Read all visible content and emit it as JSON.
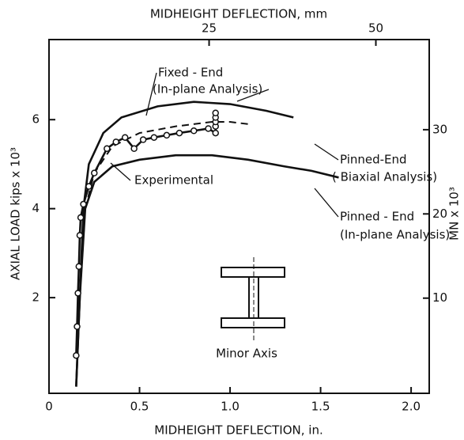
{
  "chart_data": {
    "type": "line",
    "xlabel": "MIDHEIGHT DEFLECTION, in.",
    "x2label": "MIDHEIGHT DEFLECTION, mm",
    "ylabel": "AXIAL  LOAD  kips x 10³",
    "y2label": "MN x 10³",
    "xlim": [
      0,
      2.1
    ],
    "xticks": [
      0,
      0.5,
      {
        "value": 1.0,
        "label": "1.0"
      },
      1.5,
      {
        "value": 2.0,
        "label": "2.0"
      }
    ],
    "x2lim": [
      1,
      58
    ],
    "x2ticks": [
      25,
      50
    ],
    "ylim": [
      -0.15,
      7.8
    ],
    "yticks": [
      2,
      4,
      6
    ],
    "y2lim": [
      -1.3,
      40.7
    ],
    "y2ticks": [
      10,
      20,
      30
    ],
    "series": [
      {
        "name": "Fixed - End",
        "note": "(In-plane Analysis)",
        "color": "#111111",
        "dash": false,
        "markers": false,
        "x": [
          0.15,
          0.17,
          0.19,
          0.22,
          0.3,
          0.4,
          0.6,
          0.8,
          1.0,
          1.2,
          1.35
        ],
        "values": [
          0,
          2,
          4,
          5,
          5.7,
          6.05,
          6.3,
          6.4,
          6.35,
          6.2,
          6.05
        ]
      },
      {
        "name": "Pinned-End",
        "note": "( Biaxial Analysis)",
        "color": "#111111",
        "dash": true,
        "markers": false,
        "x": [
          0.15,
          0.17,
          0.2,
          0.25,
          0.35,
          0.5,
          0.7,
          0.9,
          1.0,
          1.1
        ],
        "values": [
          0,
          2,
          4,
          4.8,
          5.4,
          5.7,
          5.85,
          5.95,
          5.95,
          5.9
        ]
      },
      {
        "name": "Pinned - End",
        "note": "(In-plane Analysis)",
        "color": "#111111",
        "dash": false,
        "markers": false,
        "x": [
          0.15,
          0.17,
          0.2,
          0.25,
          0.35,
          0.5,
          0.7,
          0.9,
          1.1,
          1.3,
          1.45,
          1.6
        ],
        "values": [
          0,
          2,
          4,
          4.6,
          4.95,
          5.1,
          5.2,
          5.2,
          5.1,
          4.95,
          4.85,
          4.7
        ]
      },
      {
        "name": "Experimental",
        "color": "#111111",
        "dash": false,
        "markers": true,
        "x": [
          0.15,
          0.155,
          0.16,
          0.165,
          0.17,
          0.175,
          0.19,
          0.22,
          0.25,
          0.32,
          0.37,
          0.42,
          0.47,
          0.52,
          0.58,
          0.65,
          0.72,
          0.8,
          0.88,
          0.92,
          0.92,
          0.92,
          0.92,
          0.92
        ],
        "values": [
          0.7,
          1.35,
          2.1,
          2.7,
          3.4,
          3.8,
          4.1,
          4.5,
          4.8,
          5.35,
          5.5,
          5.6,
          5.35,
          5.55,
          5.6,
          5.65,
          5.7,
          5.75,
          5.8,
          5.7,
          5.85,
          5.95,
          6.05,
          6.15
        ]
      }
    ],
    "inset_label": "Minor Axis"
  }
}
